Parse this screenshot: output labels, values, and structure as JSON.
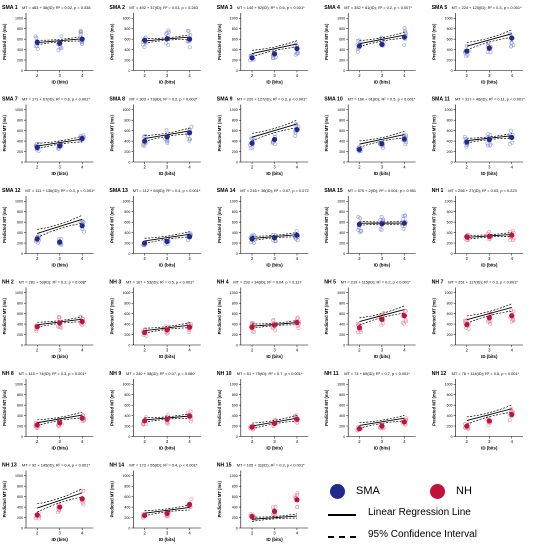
{
  "colors": {
    "sma": "#1f2a8c",
    "nh": "#c0123b",
    "sma_light": "#8a94d8",
    "nh_light": "#e58a9a",
    "line": "#000000"
  },
  "common": {
    "xlabel": "ID (bits)",
    "ylabel": "Predicted MT (ms)",
    "x_ticks": [
      "2",
      "3",
      "4"
    ],
    "y_ticks": [
      "0",
      "200",
      "400",
      "600",
      "800",
      "1000"
    ],
    "ylim": [
      0,
      1100
    ]
  },
  "legend": {
    "sma_label": "SMA",
    "nh_label": "NH",
    "regression_label": "Linear Regression Line",
    "ci_label": "95% Confidence Interval"
  },
  "chart_data": [
    {
      "type": "scatter",
      "group": "sma",
      "title": "SMA 1",
      "equation": "MT = 463 + 36(ID); R² = 0.02, p = 0.338",
      "intercept": 463,
      "slope": 36,
      "means": [
        540,
        520,
        600
      ]
    },
    {
      "type": "scatter",
      "group": "sma",
      "title": "SMA 2",
      "equation": "MT = 492 + 37(ID); R² = 0.03, p = 0.283",
      "intercept": 492,
      "slope": 37,
      "means": [
        580,
        610,
        600
      ]
    },
    {
      "type": "scatter",
      "group": "sma",
      "title": "SMA 3",
      "equation": "MT = 140 + 92(ID); R² = 0.6, p < 0.001*",
      "intercept": 140,
      "slope": 92,
      "means": [
        240,
        320,
        420
      ]
    },
    {
      "type": "scatter",
      "group": "sma",
      "title": "SMA 4",
      "equation": "MT = 352 + 81(ID); R² = 0.2, p < 0.007*",
      "intercept": 352,
      "slope": 81,
      "means": [
        470,
        500,
        640
      ]
    },
    {
      "type": "scatter",
      "group": "sma",
      "title": "SMA 5",
      "equation": "MT = 224 + 120(ID); R² = 0.3, p < 0.001*",
      "intercept": 224,
      "slope": 120,
      "means": [
        370,
        430,
        620
      ]
    },
    {
      "type": "scatter",
      "group": "sma",
      "title": "SMA 7",
      "equation": "MT = 171 + 67(ID); R² = 0.6, p < 0.001*",
      "intercept": 171,
      "slope": 67,
      "means": [
        280,
        310,
        450
      ]
    },
    {
      "type": "scatter",
      "group": "sma",
      "title": "SMA 8",
      "equation": "MT = 303 + 73(ID); R² = 0.2, p = 0.003*",
      "intercept": 303,
      "slope": 73,
      "means": [
        400,
        480,
        560
      ]
    },
    {
      "type": "scatter",
      "group": "sma",
      "title": "SMA 9",
      "equation": "MT = 220 + 127(ID); R² = 0.3, p < 0.001*",
      "intercept": 220,
      "slope": 127,
      "means": [
        360,
        430,
        620
      ]
    },
    {
      "type": "scatter",
      "group": "sma",
      "title": "SMA 10",
      "equation": "MT = 160 + 91(ID); R² = 0.5, p < 0.001*",
      "intercept": 160,
      "slope": 91,
      "means": [
        240,
        350,
        440
      ]
    },
    {
      "type": "scatter",
      "group": "sma",
      "title": "SMA 11",
      "equation": "MT = 317 + 46(ID); R² = 0.11, p < 0.001*",
      "intercept": 317,
      "slope": 46,
      "means": [
        380,
        430,
        470
      ]
    },
    {
      "type": "scatter",
      "group": "sma",
      "title": "SMA 12",
      "equation": "MT = 111 + 136(ID); R² = 0.3, p < 0.001*",
      "intercept": 111,
      "slope": 136,
      "means": [
        280,
        220,
        530
      ]
    },
    {
      "type": "scatter",
      "group": "sma",
      "title": "SMA 13",
      "equation": "MT = 112 + 64(ID); R² = 0.4, p < 0.001*",
      "intercept": 112,
      "slope": 64,
      "means": [
        200,
        230,
        320
      ]
    },
    {
      "type": "scatter",
      "group": "sma",
      "title": "SMA 14",
      "equation": "MT = 216 + 36(ID); R² = 0.07, p = 0.072",
      "intercept": 216,
      "slope": 36,
      "means": [
        280,
        300,
        350
      ]
    },
    {
      "type": "scatter",
      "group": "sma",
      "title": "SMA 15",
      "equation": "MT = 575 + 2(ID); R² = 0.004, p = 0.951",
      "intercept": 575,
      "slope": 2,
      "means": [
        560,
        570,
        580
      ]
    },
    {
      "type": "scatter",
      "group": "nh",
      "title": "NH 1",
      "equation": "MT = 256 + 27(ID); R² = 0.03, p = 0.223",
      "intercept": 256,
      "slope": 27,
      "means": [
        320,
        330,
        350
      ]
    },
    {
      "type": "scatter",
      "group": "nh",
      "title": "NH 2",
      "equation": "MT = 281 + 53(ID); R² = 0.2, p = 0.008*",
      "intercept": 281,
      "slope": 53,
      "means": [
        350,
        420,
        450
      ]
    },
    {
      "type": "scatter",
      "group": "nh",
      "title": "NH 3",
      "equation": "MT = 167 + 53(ID); R² = 0.5, p < 0.001*",
      "intercept": 167,
      "slope": 53,
      "means": [
        240,
        290,
        340
      ]
    },
    {
      "type": "scatter",
      "group": "nh",
      "title": "NH 4",
      "equation": "MT = 292 + 34(ID); R² = 0.04, p = 0.117",
      "intercept": 292,
      "slope": 34,
      "means": [
        340,
        380,
        430
      ]
    },
    {
      "type": "scatter",
      "group": "nh",
      "title": "NH 5",
      "equation": "MT = 219 + 115(ID); R² = 0.2, p < 0.001*",
      "intercept": 219,
      "slope": 115,
      "means": [
        330,
        490,
        560
      ]
    },
    {
      "type": "scatter",
      "group": "nh",
      "title": "NH 7",
      "equation": "MT = 251 + 117(ID); R² = 0.3, p < 0.001*",
      "intercept": 251,
      "slope": 117,
      "means": [
        390,
        520,
        560
      ]
    },
    {
      "type": "scatter",
      "group": "nh",
      "title": "NH 8",
      "equation": "MT = 115 + 74(ID); R² = 0.3, p < 0.001*",
      "intercept": 115,
      "slope": 74,
      "means": [
        220,
        260,
        350
      ]
    },
    {
      "type": "scatter",
      "group": "nh",
      "title": "NH 9",
      "equation": "MT = 240 + 38(ID); R² = 0.07, p = 0.080",
      "intercept": 240,
      "slope": 38,
      "means": [
        300,
        330,
        390
      ]
    },
    {
      "type": "scatter",
      "group": "nh",
      "title": "NH 10",
      "equation": "MT = 51 + 75(ID); R² = 0.7, p < 0.001*",
      "intercept": 51,
      "slope": 75,
      "means": [
        180,
        250,
        330
      ]
    },
    {
      "type": "scatter",
      "group": "nh",
      "title": "NH 11",
      "equation": "MT = 74 + 69(ID); R² = 0.7, p < 0.001*",
      "intercept": 74,
      "slope": 69,
      "means": [
        150,
        200,
        280
      ]
    },
    {
      "type": "scatter",
      "group": "nh",
      "title": "NH 12",
      "equation": "MT = 76 + 114(ID); R² = 0.6, p < 0.001*",
      "intercept": 76,
      "slope": 114,
      "means": [
        200,
        300,
        420
      ]
    },
    {
      "type": "scatter",
      "group": "nh",
      "title": "NH 13",
      "equation": "MT = 92 + 145(ID); R² = 0.4, p < 0.001*",
      "intercept": 92,
      "slope": 145,
      "means": [
        250,
        400,
        560
      ]
    },
    {
      "type": "scatter",
      "group": "nh",
      "title": "NH 14",
      "equation": "MT = 173 + 55(ID); R² = 0.4, p < 0.001*",
      "intercept": 173,
      "slope": 55,
      "means": [
        240,
        280,
        450
      ]
    },
    {
      "type": "scatter",
      "group": "nh",
      "title": "NH 15",
      "equation": "MT = 105 + 31(ID); R² = 0.3, p < 0.001*",
      "intercept": 105,
      "slope": 31,
      "means": [
        220,
        320,
        540
      ]
    }
  ]
}
